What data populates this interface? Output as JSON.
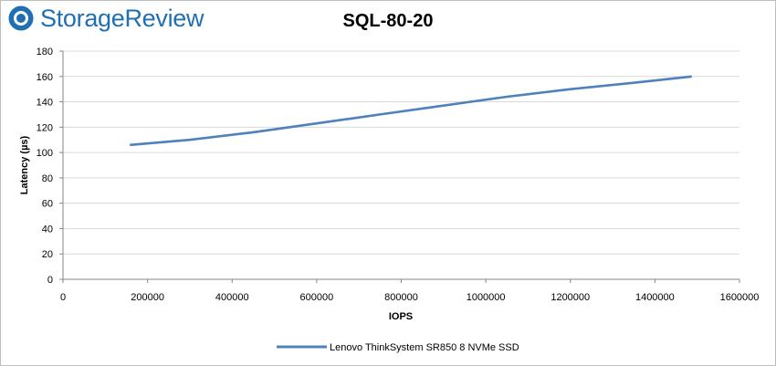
{
  "brand": {
    "name": "StorageReview",
    "accent_color": "#1f6fb2",
    "icon": "storagereview-logo-icon"
  },
  "chart_data": {
    "type": "line",
    "title": "SQL-80-20",
    "xlabel": "IOPS",
    "ylabel": "Latency (µs)",
    "xlim": [
      0,
      1600000
    ],
    "ylim": [
      0,
      180
    ],
    "x_ticks": [
      "0",
      "200000",
      "400000",
      "600000",
      "800000",
      "1000000",
      "1200000",
      "1400000",
      "1600000"
    ],
    "y_ticks": [
      "0",
      "20",
      "40",
      "60",
      "80",
      "100",
      "120",
      "140",
      "160",
      "180"
    ],
    "grid": true,
    "legend_position": "bottom",
    "series": [
      {
        "name": "Lenovo ThinkSystem SR850 8 NVMe SSD",
        "color": "#4f81bd",
        "x": [
          158000,
          300000,
          450000,
          600000,
          750000,
          900000,
          1050000,
          1200000,
          1350000,
          1487000
        ],
        "y": [
          106,
          110,
          116,
          123,
          130,
          137,
          144,
          150,
          155,
          160
        ]
      }
    ]
  }
}
